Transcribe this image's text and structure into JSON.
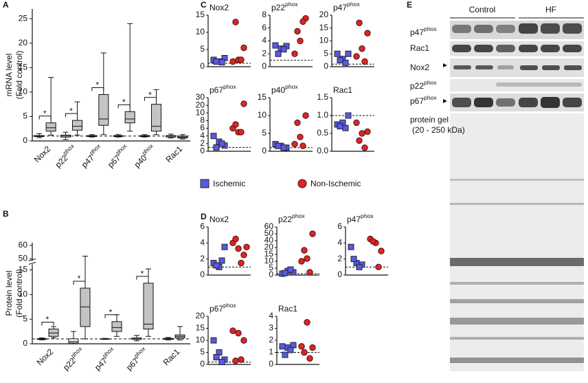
{
  "chart_data": [
    {
      "type": "box",
      "panel": "A",
      "ylabel": "mRNA level",
      "ylabel_sub": "(Fold control)",
      "ylim": [
        0,
        27
      ],
      "yticks": [
        0,
        5,
        10,
        15,
        20,
        25
      ],
      "reference_line": 1,
      "categories": [
        "Nox2",
        "p22phox",
        "p47phox",
        "p67phox",
        "p40phox",
        "Rac1"
      ],
      "significance": [
        "*",
        "*",
        "*",
        "*",
        "*",
        null
      ],
      "series": [
        {
          "color": "#ffffff",
          "boxes": [
            {
              "min": 0.7,
              "q1": 0.9,
              "median": 1,
              "q3": 1.1,
              "max": 1.5
            },
            {
              "min": 0.3,
              "q1": 0.8,
              "median": 1,
              "q3": 1.2,
              "max": 1.8
            },
            {
              "min": 0.8,
              "q1": 0.9,
              "median": 1,
              "q3": 1.1,
              "max": 1.3
            },
            {
              "min": 0.8,
              "q1": 0.9,
              "median": 1,
              "q3": 1.1,
              "max": 1.3
            },
            {
              "min": 0.8,
              "q1": 0.9,
              "median": 1,
              "q3": 1.1,
              "max": 1.3
            },
            {
              "min": 0.6,
              "q1": 0.8,
              "median": 1,
              "q3": 1.1,
              "max": 1.4
            }
          ]
        },
        {
          "color": "#c4c4c4",
          "boxes": [
            {
              "min": 1.2,
              "q1": 2,
              "median": 2.7,
              "q3": 3.7,
              "max": 13
            },
            {
              "min": 1.2,
              "q1": 2.2,
              "median": 3,
              "q3": 4.2,
              "max": 8
            },
            {
              "min": 1.3,
              "q1": 3.2,
              "median": 4.5,
              "q3": 9.5,
              "max": 18
            },
            {
              "min": 2,
              "q1": 3.7,
              "median": 4.5,
              "q3": 6,
              "max": 24
            },
            {
              "min": 1.3,
              "q1": 2,
              "median": 3,
              "q3": 7.5,
              "max": 10.5
            },
            {
              "min": 0.4,
              "q1": 0.6,
              "median": 0.8,
              "q3": 1,
              "max": 1.3
            }
          ]
        }
      ]
    },
    {
      "type": "box",
      "panel": "B",
      "ylabel": "Protein level",
      "ylabel_sub": "(Fold control)",
      "ylim": [
        0,
        62
      ],
      "axis_break": [
        16,
        48
      ],
      "yticks": [
        0,
        5,
        10,
        15,
        50,
        60
      ],
      "reference_line": 1,
      "categories": [
        "Nox2",
        "p22phox",
        "p47phox",
        "p67phox",
        "Rac1"
      ],
      "significance": [
        "*",
        "*",
        "*",
        "*",
        null
      ],
      "series": [
        {
          "color": "#ffffff",
          "boxes": [
            {
              "min": 0.8,
              "q1": 0.9,
              "median": 1,
              "q3": 1.05,
              "max": 1.2
            },
            {
              "min": 0,
              "q1": 0.2,
              "median": 0.5,
              "q3": 1,
              "max": 2.5
            },
            {
              "min": 0.9,
              "q1": 1,
              "median": 1,
              "q3": 1,
              "max": 1.1
            },
            {
              "min": 0.6,
              "q1": 0.9,
              "median": 1,
              "q3": 1.2,
              "max": 1.7
            },
            {
              "min": 0.8,
              "q1": 0.9,
              "median": 1,
              "q3": 1.1,
              "max": 1.3
            }
          ]
        },
        {
          "color": "#c4c4c4",
          "boxes": [
            {
              "min": 1.2,
              "q1": 1.5,
              "median": 2.2,
              "q3": 3,
              "max": 3.5
            },
            {
              "min": 1,
              "q1": 3.5,
              "median": 7.5,
              "q3": 11.3,
              "max": 52
            },
            {
              "min": 1.5,
              "q1": 2.5,
              "median": 3.3,
              "q3": 4.5,
              "max": 5.9
            },
            {
              "min": 1.5,
              "q1": 3,
              "median": 4,
              "q3": 12.3,
              "max": 15.2
            },
            {
              "min": 0.8,
              "q1": 1.2,
              "median": 1.5,
              "q3": 1.8,
              "max": 3.5
            }
          ]
        }
      ]
    },
    {
      "type": "strip",
      "panel": "C",
      "title": "Nox2",
      "ylim": [
        0,
        15
      ],
      "yticks": [
        0,
        5,
        10,
        15
      ],
      "reference_line": 1,
      "series": [
        {
          "values": [
            2,
            1.5,
            2.5,
            1.5,
            1.3
          ]
        },
        {
          "values": [
            1.5,
            2,
            5.5,
            13,
            2
          ]
        }
      ]
    },
    {
      "type": "strip",
      "title": "p22phox",
      "ylim": [
        0,
        8
      ],
      "yticks": [
        0,
        2,
        4,
        6,
        8
      ],
      "reference_line": 1,
      "series": [
        {
          "values": [
            3.3,
            2.8,
            3.2,
            2,
            2.7
          ]
        },
        {
          "values": [
            2,
            4,
            7.5,
            5.5,
            7
          ]
        }
      ]
    },
    {
      "type": "strip",
      "title": "p47phox",
      "ylim": [
        0,
        20
      ],
      "yticks": [
        0,
        5,
        10,
        15,
        20
      ],
      "reference_line": 1,
      "series": [
        {
          "values": [
            5,
            3,
            5,
            2.5,
            1.5
          ]
        },
        {
          "values": [
            4,
            7,
            13,
            17,
            2
          ]
        }
      ]
    },
    {
      "type": "strip",
      "title": "p67phox",
      "ylim": [
        0,
        30
      ],
      "segmented": true,
      "yticks": [
        0,
        2,
        4,
        6,
        8,
        10,
        20,
        30
      ],
      "reference_line": 1,
      "series": [
        {
          "values": [
            4,
            2.5,
            1.5,
            1,
            2
          ]
        },
        {
          "values": [
            6,
            5,
            22,
            7,
            5
          ]
        }
      ]
    },
    {
      "type": "strip",
      "title": "p40phox",
      "ylim": [
        0,
        15
      ],
      "yticks": [
        0,
        5,
        10,
        15
      ],
      "reference_line": 1,
      "series": [
        {
          "values": [
            2,
            1.5,
            1,
            1.5,
            1
          ]
        },
        {
          "values": [
            2,
            4,
            10,
            8,
            1.5
          ]
        }
      ]
    },
    {
      "type": "strip",
      "title": "Rac1",
      "ylim": [
        0,
        1.5
      ],
      "yticks": [
        {
          "value": 0,
          "label": "0.0"
        },
        {
          "value": 0.5,
          "label": "0.5"
        },
        {
          "value": 1,
          "label": "1.0"
        },
        {
          "value": 1.5,
          "label": "1.5"
        }
      ],
      "reference_line": 1,
      "series": [
        {
          "values": [
            0.75,
            0.8,
            1,
            0.7,
            0.65
          ]
        },
        {
          "values": [
            0.8,
            0.5,
            0.55,
            0.3,
            0.1
          ]
        }
      ]
    },
    {
      "type": "strip",
      "panel": "D",
      "title": "Nox2",
      "ylim": [
        0,
        6
      ],
      "yticks": [
        0,
        2,
        4,
        6
      ],
      "reference_line": 1,
      "series": [
        {
          "values": [
            1.5,
            1,
            3.5,
            1.2,
            1.8
          ]
        },
        {
          "values": [
            4,
            3.3,
            2.5,
            4.5,
            1.5,
            3.5
          ]
        }
      ]
    },
    {
      "type": "strip",
      "title": "p22phox",
      "ylim": [
        0,
        60
      ],
      "segmented": true,
      "yticks": [
        0,
        5,
        10,
        15,
        20,
        40,
        50,
        60
      ],
      "reference_line": 1,
      "series": [
        {
          "values": [
            1,
            3,
            2,
            1.5,
            4
          ]
        },
        {
          "values": [
            10,
            12,
            50,
            18,
            2
          ]
        }
      ]
    },
    {
      "type": "strip",
      "title": "p47phox",
      "ylim": [
        0,
        6
      ],
      "yticks": [
        0,
        2,
        4,
        6
      ],
      "reference_line": 1,
      "series": [
        {
          "values": [
            3.5,
            1.5,
            1.3,
            2,
            1
          ]
        },
        {
          "values": [
            4.5,
            4,
            3,
            4.2,
            1
          ]
        }
      ]
    },
    {
      "type": "strip",
      "title": "p67phox",
      "ylim": [
        0,
        20
      ],
      "yticks": [
        0,
        5,
        10,
        15,
        20
      ],
      "reference_line": 1,
      "series": [
        {
          "values": [
            10,
            5,
            2,
            3,
            1
          ]
        },
        {
          "values": [
            14,
            13,
            10,
            1.5,
            2
          ]
        }
      ]
    },
    {
      "type": "strip",
      "title": "Rac1",
      "ylim": [
        0,
        4
      ],
      "yticks": [
        0,
        1,
        2,
        3,
        4
      ],
      "reference_line": 1,
      "series": [
        {
          "values": [
            1.5,
            1.4,
            1.6,
            0.8,
            1.2
          ]
        },
        {
          "values": [
            1.5,
            3.5,
            1.4,
            1,
            0.5
          ]
        }
      ]
    }
  ],
  "legend": [
    {
      "name": "Ischemic",
      "color": "#5a5ae0",
      "marker": "square"
    },
    {
      "name": "Non-Ischemic",
      "color": "#e02424",
      "marker": "circle"
    }
  ],
  "blot": {
    "panel": "E",
    "groups": [
      "Control",
      "HF"
    ],
    "bands": [
      "p47phox",
      "Rac1",
      "Nox2",
      "p22phox",
      "p67phox"
    ],
    "gel_label": "protein gel",
    "gel_range": "(20 - 250 kDa)"
  }
}
